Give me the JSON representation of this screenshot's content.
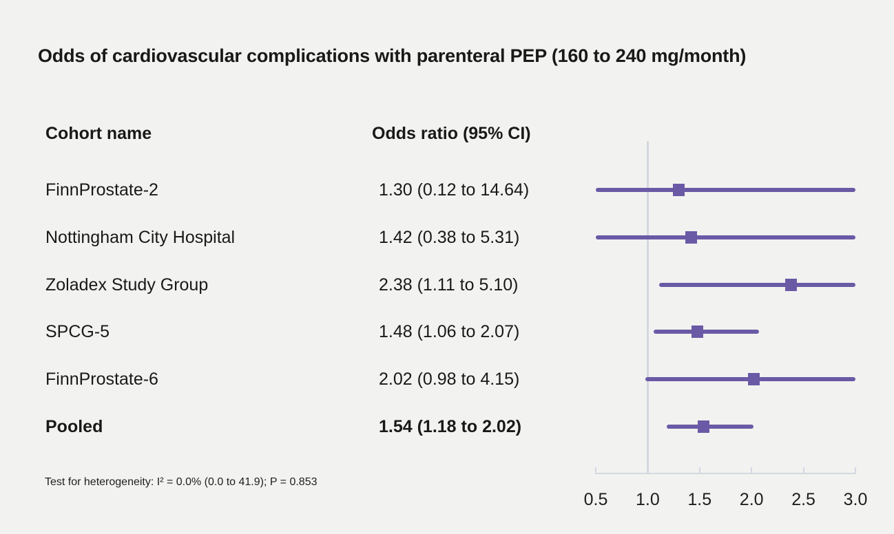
{
  "title": "Odds of cardiovascular complications with parenteral PEP (160 to 240 mg/month)",
  "table": {
    "cohort_header": "Cohort name",
    "or_header": "Odds ratio (95% CI)"
  },
  "footnote": "Test for heterogeneity: I² = 0.0% (0.0 to 41.9); P = 0.853",
  "colors": {
    "marker_purple": "#6a5aa6",
    "axis_gray": "#d3d8e0",
    "background": "#f2f2f0",
    "text": "#191919"
  },
  "chart_data": {
    "type": "forest",
    "title": "Odds of cardiovascular complications with parenteral PEP (160 to 240 mg/month)",
    "xlabel": "",
    "ylabel": "",
    "xlim": [
      0.5,
      3.0
    ],
    "reference_line": 1.0,
    "x_tick_labels": [
      "0.5",
      "1.0",
      "1.5",
      "2.0",
      "2.5",
      "3.0"
    ],
    "x_tick_values": [
      0.5,
      1.0,
      1.5,
      2.0,
      2.5,
      3.0
    ],
    "legend": "none",
    "grid": "off",
    "rows": [
      {
        "cohort": "FinnProstate-2",
        "or_label": "1.30 (0.12 to 14.64)",
        "or": 1.3,
        "ci_low": 0.12,
        "ci_high": 14.64,
        "bold": false
      },
      {
        "cohort": "Nottingham City Hospital",
        "or_label": "1.42 (0.38 to 5.31)",
        "or": 1.42,
        "ci_low": 0.38,
        "ci_high": 5.31,
        "bold": false
      },
      {
        "cohort": "Zoladex Study Group",
        "or_label": "2.38 (1.11 to 5.10)",
        "or": 2.38,
        "ci_low": 1.11,
        "ci_high": 5.1,
        "bold": false
      },
      {
        "cohort": "SPCG-5",
        "or_label": "1.48 (1.06 to 2.07)",
        "or": 1.48,
        "ci_low": 1.06,
        "ci_high": 2.07,
        "bold": false
      },
      {
        "cohort": "FinnProstate-6",
        "or_label": "2.02 (0.98 to 4.15)",
        "or": 2.02,
        "ci_low": 0.98,
        "ci_high": 4.15,
        "bold": false
      },
      {
        "cohort": "Pooled",
        "or_label": "1.54 (1.18 to 2.02)",
        "or": 1.54,
        "ci_low": 1.18,
        "ci_high": 2.02,
        "bold": true
      }
    ]
  }
}
